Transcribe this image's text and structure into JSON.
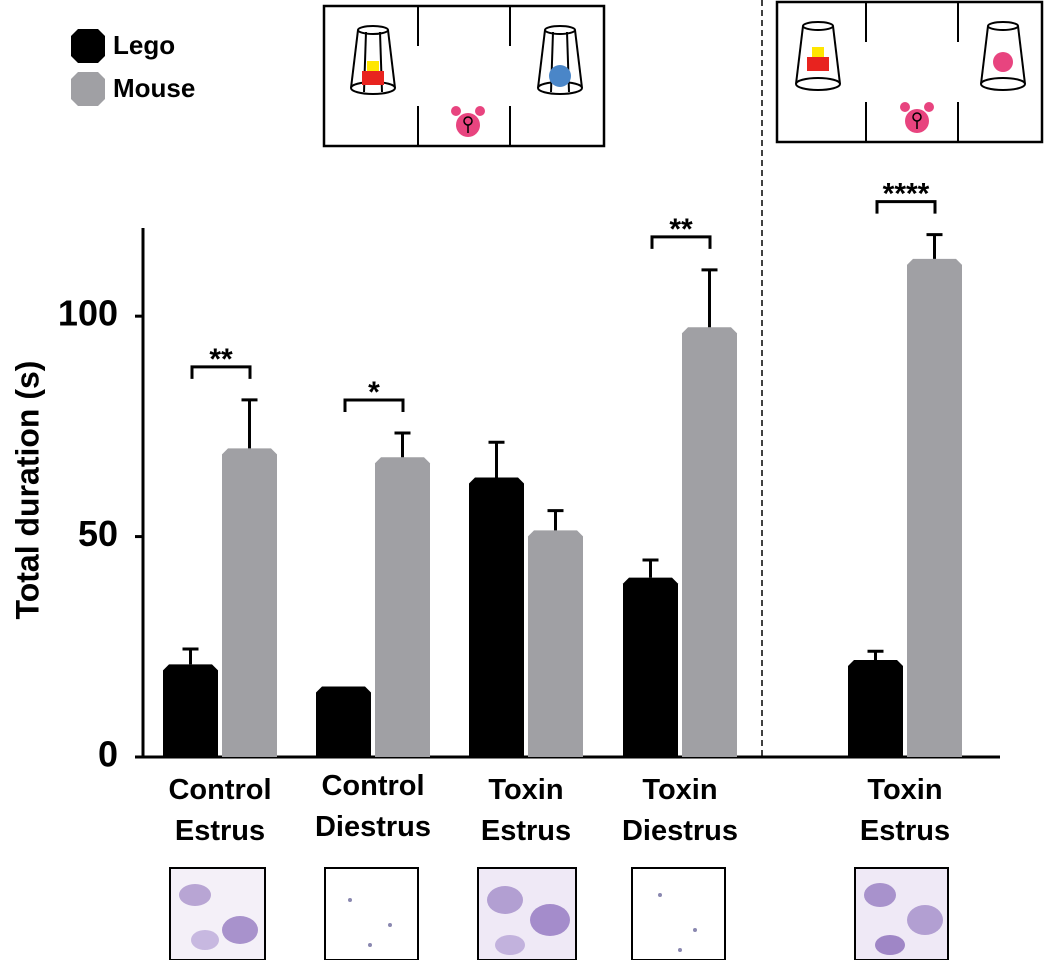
{
  "chart_data": {
    "type": "bar",
    "ylabel": "Total duration (s)",
    "categories": [
      "Control Estrus",
      "Control Diestrus",
      "Toxin Estrus",
      "Toxin Diestrus",
      "Toxin Estrus"
    ],
    "series": [
      {
        "name": "Lego",
        "color": "#000000",
        "values": [
          21,
          16,
          63.4,
          40.7,
          22
        ],
        "errors": [
          3.5,
          null,
          8,
          4,
          2
        ]
      },
      {
        "name": "Mouse",
        "color": "#a0a0a4",
        "values": [
          70,
          68,
          51.4,
          97.5,
          113
        ],
        "errors": [
          11,
          5.5,
          4.5,
          13,
          5.5
        ]
      }
    ],
    "significance": [
      "**",
      "*",
      null,
      "**",
      "****"
    ],
    "ylim": [
      0,
      120
    ],
    "yticks": [
      0,
      50,
      100
    ],
    "legend": "top-left"
  }
}
